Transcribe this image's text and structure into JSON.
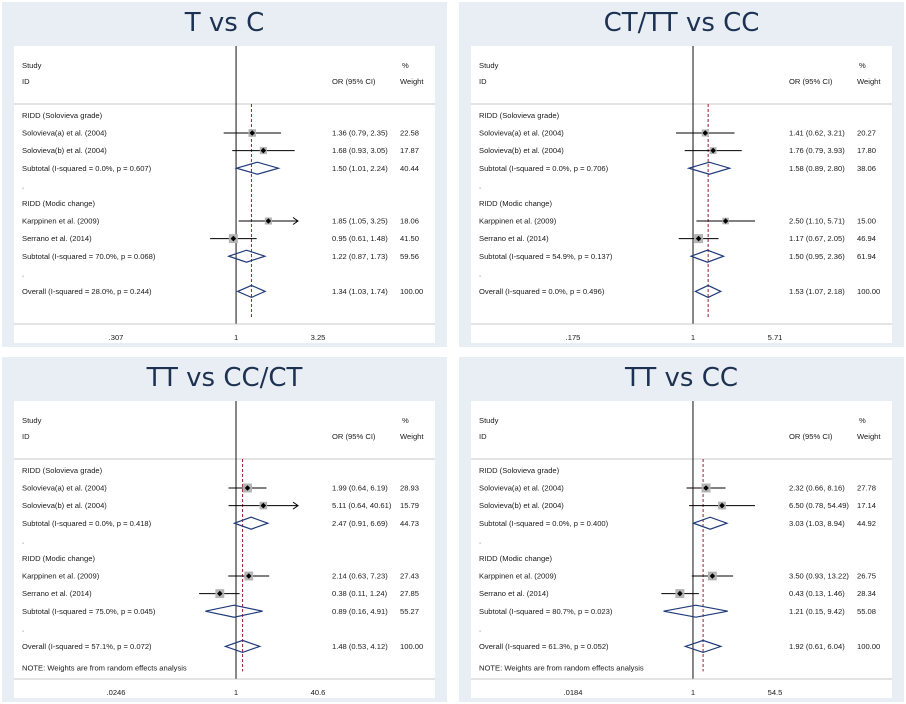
{
  "chart_data": [
    {
      "type": "forest",
      "title": "T vs C",
      "header": {
        "study": "Study",
        "id": "ID",
        "or_label": "OR (95% CI)",
        "pct": "%",
        "weight": "Weight"
      },
      "ticks": [
        ".307",
        "1",
        "3.25"
      ],
      "axis": {
        "min": 0.307,
        "max": 3.25,
        "scale": "log"
      },
      "overall_or": 1.34,
      "note": "",
      "rows": [
        {
          "kind": "group",
          "label": "RIDD (Solovieva grade)"
        },
        {
          "kind": "study",
          "label": "Solovieva(a) et al. (2004)",
          "or": 1.36,
          "lo": 0.79,
          "hi": 2.35,
          "weight": 22.58,
          "or_text": "1.36 (0.79, 2.35)",
          "weight_text": "22.58"
        },
        {
          "kind": "study",
          "label": "Solovieva(b) et al. (2004)",
          "or": 1.68,
          "lo": 0.93,
          "hi": 3.05,
          "weight": 17.87,
          "or_text": "1.68 (0.93, 3.05)",
          "weight_text": "17.87"
        },
        {
          "kind": "subtotal",
          "label": "Subtotal  (I-squared = 0.0%, p = 0.607)",
          "or": 1.5,
          "lo": 1.01,
          "hi": 2.24,
          "weight": 40.44,
          "or_text": "1.50 (1.01, 2.24)",
          "weight_text": "40.44"
        },
        {
          "kind": "dot",
          "label": "."
        },
        {
          "kind": "group",
          "label": "RIDD (Modic change)"
        },
        {
          "kind": "study",
          "label": "Karppinen et al. (2009)",
          "or": 1.85,
          "lo": 1.05,
          "hi": 3.25,
          "weight": 18.06,
          "or_text": "1.85 (1.05, 3.25)",
          "weight_text": "18.06",
          "arrow": true
        },
        {
          "kind": "study",
          "label": "Serrano et al. (2014)",
          "or": 0.95,
          "lo": 0.61,
          "hi": 1.48,
          "weight": 41.5,
          "or_text": "0.95 (0.61, 1.48)",
          "weight_text": "41.50"
        },
        {
          "kind": "subtotal",
          "label": "Subtotal  (I-squared = 70.0%, p = 0.068)",
          "or": 1.22,
          "lo": 0.87,
          "hi": 1.73,
          "weight": 59.56,
          "or_text": "1.22 (0.87, 1.73)",
          "weight_text": "59.56"
        },
        {
          "kind": "dot",
          "label": "."
        },
        {
          "kind": "overall",
          "label": "Overall  (I-squared = 28.0%, p = 0.244)",
          "or": 1.34,
          "lo": 1.03,
          "hi": 1.74,
          "weight": 100,
          "or_text": "1.34 (1.03, 1.74)",
          "weight_text": "100.00"
        }
      ]
    },
    {
      "type": "forest",
      "title": "CT/TT vs CC",
      "header": {
        "study": "Study",
        "id": "ID",
        "or_label": "OR (95% CI)",
        "pct": "%",
        "weight": "Weight"
      },
      "ticks": [
        ".175",
        "1",
        "5.71"
      ],
      "axis": {
        "min": 0.175,
        "max": 5.71,
        "scale": "log"
      },
      "overall_or": 1.53,
      "note": "",
      "rows": [
        {
          "kind": "group",
          "label": "RIDD (Solovieva grade)"
        },
        {
          "kind": "study",
          "label": "Solovieva(a) et al. (2004)",
          "or": 1.41,
          "lo": 0.62,
          "hi": 3.21,
          "weight": 20.27,
          "or_text": "1.41 (0.62, 3.21)",
          "weight_text": "20.27"
        },
        {
          "kind": "study",
          "label": "Solovieva(b) et al. (2004)",
          "or": 1.76,
          "lo": 0.79,
          "hi": 3.93,
          "weight": 17.8,
          "or_text": "1.76 (0.79, 3.93)",
          "weight_text": "17.80"
        },
        {
          "kind": "subtotal",
          "label": "Subtotal  (I-squared = 0.0%, p = 0.706)",
          "or": 1.58,
          "lo": 0.89,
          "hi": 2.8,
          "weight": 38.06,
          "or_text": "1.58 (0.89, 2.80)",
          "weight_text": "38.06"
        },
        {
          "kind": "dot",
          "label": "."
        },
        {
          "kind": "group",
          "label": "RIDD (Modic change)"
        },
        {
          "kind": "study",
          "label": "Karppinen et al. (2009)",
          "or": 2.5,
          "lo": 1.1,
          "hi": 5.71,
          "weight": 15.0,
          "or_text": "2.50 (1.10, 5.71)",
          "weight_text": "15.00"
        },
        {
          "kind": "study",
          "label": "Serrano et al. (2014)",
          "or": 1.17,
          "lo": 0.67,
          "hi": 2.05,
          "weight": 46.94,
          "or_text": "1.17 (0.67, 2.05)",
          "weight_text": "46.94"
        },
        {
          "kind": "subtotal",
          "label": "Subtotal  (I-squared = 54.9%, p = 0.137)",
          "or": 1.5,
          "lo": 0.95,
          "hi": 2.36,
          "weight": 61.94,
          "or_text": "1.50 (0.95, 2.36)",
          "weight_text": "61.94"
        },
        {
          "kind": "dot",
          "label": "."
        },
        {
          "kind": "overall",
          "label": "Overall  (I-squared = 0.0%, p = 0.496)",
          "or": 1.53,
          "lo": 1.07,
          "hi": 2.18,
          "weight": 100,
          "or_text": "1.53 (1.07, 2.18)",
          "weight_text": "100.00"
        }
      ]
    },
    {
      "type": "forest",
      "title": "TT vs CC/CT",
      "header": {
        "study": "Study",
        "id": "ID",
        "or_label": "OR (95% CI)",
        "pct": "%",
        "weight": "Weight"
      },
      "ticks": [
        ".0246",
        "1",
        "40.6"
      ],
      "axis": {
        "min": 0.0246,
        "max": 40.6,
        "scale": "log"
      },
      "overall_or": 1.48,
      "note": "NOTE: Weights are from random effects analysis",
      "rows": [
        {
          "kind": "group",
          "label": "RIDD (Solovieva grade)"
        },
        {
          "kind": "study",
          "label": "Solovieva(a) et al. (2004)",
          "or": 1.99,
          "lo": 0.64,
          "hi": 6.19,
          "weight": 28.93,
          "or_text": "1.99 (0.64, 6.19)",
          "weight_text": "28.93"
        },
        {
          "kind": "study",
          "label": "Solovieva(b) et al. (2004)",
          "or": 5.11,
          "lo": 0.64,
          "hi": 40.61,
          "weight": 15.79,
          "or_text": "5.11 (0.64, 40.61)",
          "weight_text": "15.79",
          "arrow": true
        },
        {
          "kind": "subtotal",
          "label": "Subtotal  (I-squared = 0.0%, p = 0.418)",
          "or": 2.47,
          "lo": 0.91,
          "hi": 6.69,
          "weight": 44.73,
          "or_text": "2.47 (0.91, 6.69)",
          "weight_text": "44.73"
        },
        {
          "kind": "dot",
          "label": "."
        },
        {
          "kind": "group",
          "label": "RIDD (Modic change)"
        },
        {
          "kind": "study",
          "label": "Karppinen et al. (2009)",
          "or": 2.14,
          "lo": 0.63,
          "hi": 7.23,
          "weight": 27.43,
          "or_text": "2.14 (0.63, 7.23)",
          "weight_text": "27.43"
        },
        {
          "kind": "study",
          "label": "Serrano et al. (2014)",
          "or": 0.38,
          "lo": 0.11,
          "hi": 1.24,
          "weight": 27.85,
          "or_text": "0.38 (0.11, 1.24)",
          "weight_text": "27.85"
        },
        {
          "kind": "subtotal",
          "label": "Subtotal  (I-squared = 75.0%, p = 0.045)",
          "or": 0.89,
          "lo": 0.16,
          "hi": 4.91,
          "weight": 55.27,
          "or_text": "0.89 (0.16, 4.91)",
          "weight_text": "55.27"
        },
        {
          "kind": "dot",
          "label": "."
        },
        {
          "kind": "overall",
          "label": "Overall  (I-squared = 57.1%, p = 0.072)",
          "or": 1.48,
          "lo": 0.53,
          "hi": 4.12,
          "weight": 100,
          "or_text": "1.48 (0.53, 4.12)",
          "weight_text": "100.00"
        }
      ]
    },
    {
      "type": "forest",
      "title": "TT vs CC",
      "header": {
        "study": "Study",
        "id": "ID",
        "or_label": "OR (95% CI)",
        "pct": "%",
        "weight": "Weight"
      },
      "ticks": [
        ".0184",
        "1",
        "54.5"
      ],
      "axis": {
        "min": 0.0184,
        "max": 54.5,
        "scale": "log"
      },
      "overall_or": 1.92,
      "note": "NOTE: Weights are from random effects analysis",
      "rows": [
        {
          "kind": "group",
          "label": "RIDD (Solovieva grade)"
        },
        {
          "kind": "study",
          "label": "Solovieva(a) et al. (2004)",
          "or": 2.32,
          "lo": 0.66,
          "hi": 8.16,
          "weight": 27.78,
          "or_text": "2.32 (0.66, 8.16)",
          "weight_text": "27.78"
        },
        {
          "kind": "study",
          "label": "Solovieva(b) et al. (2004)",
          "or": 6.5,
          "lo": 0.78,
          "hi": 54.49,
          "weight": 17.14,
          "or_text": "6.50 (0.78, 54.49)",
          "weight_text": "17.14"
        },
        {
          "kind": "subtotal",
          "label": "Subtotal  (I-squared = 0.0%, p = 0.400)",
          "or": 3.03,
          "lo": 1.03,
          "hi": 8.94,
          "weight": 44.92,
          "or_text": "3.03 (1.03, 8.94)",
          "weight_text": "44.92"
        },
        {
          "kind": "dot",
          "label": "."
        },
        {
          "kind": "group",
          "label": "RIDD (Modic change)"
        },
        {
          "kind": "study",
          "label": "Karppinen et al. (2009)",
          "or": 3.5,
          "lo": 0.93,
          "hi": 13.22,
          "weight": 26.75,
          "or_text": "3.50 (0.93, 13.22)",
          "weight_text": "26.75"
        },
        {
          "kind": "study",
          "label": "Serrano et al. (2014)",
          "or": 0.43,
          "lo": 0.13,
          "hi": 1.46,
          "weight": 28.34,
          "or_text": "0.43 (0.13, 1.46)",
          "weight_text": "28.34"
        },
        {
          "kind": "subtotal",
          "label": "Subtotal  (I-squared = 80.7%, p = 0.023)",
          "or": 1.21,
          "lo": 0.15,
          "hi": 9.42,
          "weight": 55.08,
          "or_text": "1.21 (0.15, 9.42)",
          "weight_text": "55.08"
        },
        {
          "kind": "dot",
          "label": "."
        },
        {
          "kind": "overall",
          "label": "Overall  (I-squared = 61.3%, p = 0.052)",
          "or": 1.92,
          "lo": 0.61,
          "hi": 6.04,
          "weight": 100,
          "or_text": "1.92 (0.61, 6.04)",
          "weight_text": "100.00"
        }
      ]
    }
  ]
}
